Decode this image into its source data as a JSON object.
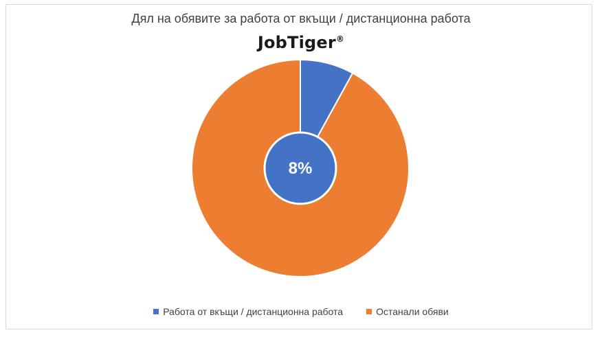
{
  "chart_data": {
    "type": "pie",
    "title": "Дял на обявите за работа от вкъщи / дистанционна работа",
    "categories": [
      "Работа от вкъщи / дистанционна работа",
      "Останали обяви"
    ],
    "values": [
      8,
      92
    ],
    "center_label": "8%",
    "legend_position": "bottom",
    "colors": [
      "#4472C4",
      "#ED7D31"
    ]
  },
  "logo": {
    "text": "JobTiger",
    "mark": "®"
  }
}
